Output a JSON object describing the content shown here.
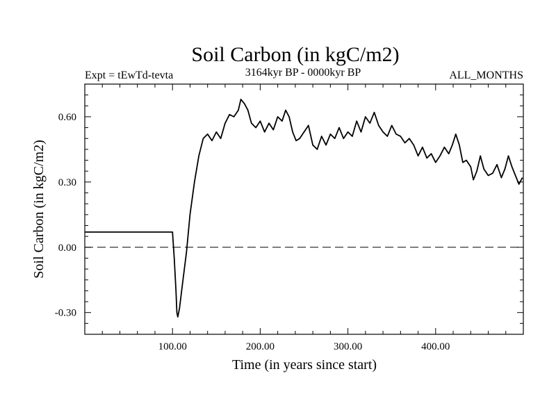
{
  "chart_data": {
    "type": "line",
    "title": "Soil Carbon (in kgC/m2)",
    "experiment_label": "Expt = tEwTd-tevta",
    "period_label": "3164kyr BP - 0000kyr BP",
    "season_label": "ALL_MONTHS",
    "xlabel": "Time (in years since start)",
    "ylabel": "Soil Carbon (in kgC/m2)",
    "xlim": [
      0,
      500
    ],
    "ylim": [
      -0.4,
      0.75
    ],
    "x_ticks": [
      100,
      200,
      300,
      400
    ],
    "x_tick_labels": [
      "100.00",
      "200.00",
      "300.00",
      "400.00"
    ],
    "y_ticks": [
      -0.3,
      0,
      0.3,
      0.6
    ],
    "y_tick_labels": [
      "-0.30",
      "0.00",
      "0.30",
      "0.60"
    ],
    "zero_line": true,
    "series": [
      {
        "name": "Soil Carbon",
        "color": "#000000",
        "x": [
          0,
          99,
          100,
          102,
          104,
          105,
          106,
          108,
          112,
          116,
          120,
          125,
          130,
          135,
          140,
          145,
          150,
          155,
          160,
          165,
          170,
          175,
          178,
          182,
          186,
          190,
          195,
          200,
          205,
          210,
          215,
          220,
          225,
          229,
          233,
          237,
          241,
          245,
          250,
          255,
          260,
          265,
          270,
          275,
          280,
          285,
          290,
          295,
          300,
          305,
          310,
          315,
          320,
          325,
          330,
          335,
          340,
          345,
          350,
          355,
          360,
          365,
          370,
          375,
          380,
          385,
          390,
          395,
          400,
          405,
          410,
          415,
          419,
          423,
          427,
          431,
          435,
          440,
          443,
          447,
          451,
          455,
          460,
          465,
          470,
          475,
          479,
          483,
          487,
          491,
          495,
          499
        ],
        "values": [
          0.07,
          0.07,
          0.07,
          -0.05,
          -0.2,
          -0.3,
          -0.32,
          -0.28,
          -0.15,
          -0.02,
          0.15,
          0.3,
          0.42,
          0.5,
          0.52,
          0.49,
          0.53,
          0.5,
          0.57,
          0.61,
          0.6,
          0.63,
          0.68,
          0.66,
          0.63,
          0.57,
          0.55,
          0.58,
          0.53,
          0.57,
          0.54,
          0.6,
          0.58,
          0.63,
          0.6,
          0.53,
          0.49,
          0.5,
          0.53,
          0.56,
          0.47,
          0.45,
          0.51,
          0.47,
          0.52,
          0.5,
          0.55,
          0.5,
          0.53,
          0.51,
          0.58,
          0.53,
          0.6,
          0.57,
          0.62,
          0.56,
          0.53,
          0.51,
          0.56,
          0.52,
          0.51,
          0.48,
          0.5,
          0.47,
          0.42,
          0.46,
          0.41,
          0.43,
          0.39,
          0.42,
          0.46,
          0.43,
          0.47,
          0.52,
          0.47,
          0.39,
          0.4,
          0.37,
          0.31,
          0.35,
          0.42,
          0.36,
          0.33,
          0.34,
          0.38,
          0.32,
          0.36,
          0.42,
          0.37,
          0.33,
          0.29,
          0.32
        ]
      }
    ]
  }
}
